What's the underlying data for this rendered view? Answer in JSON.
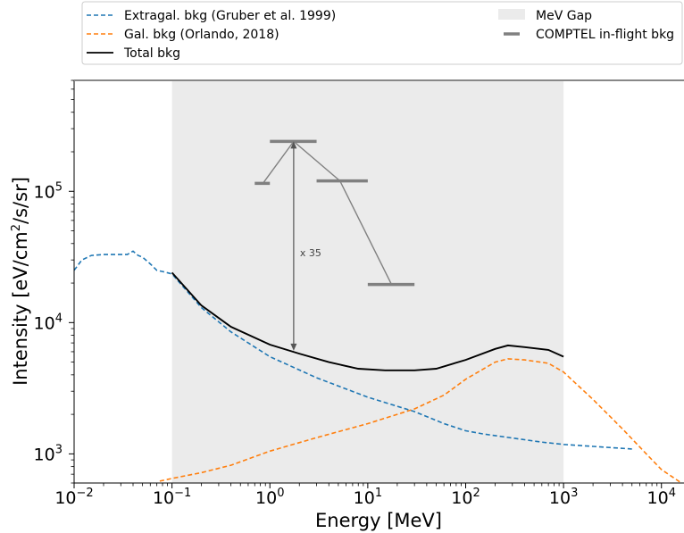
{
  "chart_data": {
    "type": "line",
    "xlabel": "Energy [MeV]",
    "ylabel_prefix": "Intensity [eV/cm",
    "ylabel_sup": "2",
    "ylabel_suffix": "/s/sr]",
    "xscale": "log",
    "yscale": "log",
    "xlim": [
      0.01,
      17000
    ],
    "ylim": [
      600,
      700000
    ],
    "x_ticks": [
      {
        "value": 0.01,
        "base": "10",
        "exp": "−2"
      },
      {
        "value": 0.1,
        "base": "10",
        "exp": "−1"
      },
      {
        "value": 1,
        "base": "10",
        "exp": "0"
      },
      {
        "value": 10,
        "base": "10",
        "exp": "1"
      },
      {
        "value": 100,
        "base": "10",
        "exp": "2"
      },
      {
        "value": 1000,
        "base": "10",
        "exp": "3"
      },
      {
        "value": 10000,
        "base": "10",
        "exp": "4"
      }
    ],
    "y_ticks": [
      {
        "value": 1000,
        "base": "10",
        "exp": "3"
      },
      {
        "value": 10000,
        "base": "10",
        "exp": "4"
      },
      {
        "value": 100000,
        "base": "10",
        "exp": "5"
      }
    ],
    "legend": {
      "placement": "top (above plot)",
      "entries": [
        {
          "label": "Extragal. bkg (Gruber et al. 1999)",
          "style": "dashed",
          "color": "#1f77b4"
        },
        {
          "label": "Gal. bkg (Orlando, 2018)",
          "style": "dashed",
          "color": "#ff7f0e"
        },
        {
          "label": "Total bkg",
          "style": "solid",
          "color": "#000000"
        },
        {
          "label": "MeV Gap",
          "style": "patch",
          "color": "#ebebeb"
        },
        {
          "label": "COMPTEL in-flight bkg",
          "style": "bar",
          "color": "#808080"
        }
      ]
    },
    "mev_gap": {
      "x_range": [
        0.1,
        1000
      ],
      "color": "#ebebeb"
    },
    "series": [
      {
        "name": "Extragal. bkg (Gruber et al. 1999)",
        "color": "#1f77b4",
        "style": "dashed",
        "x": [
          0.01,
          0.012,
          0.015,
          0.02,
          0.025,
          0.03,
          0.035,
          0.04,
          0.045,
          0.05,
          0.06,
          0.07,
          0.08,
          0.1,
          0.2,
          0.4,
          1,
          3,
          10,
          30,
          60,
          100,
          150,
          300,
          600,
          1000,
          2000,
          5000
        ],
        "y": [
          25000,
          30000,
          32500,
          33000,
          33000,
          33000,
          33000,
          35000,
          32500,
          31500,
          28000,
          25000,
          24500,
          23500,
          13000,
          8500,
          5500,
          3800,
          2700,
          2100,
          1700,
          1500,
          1420,
          1320,
          1230,
          1180,
          1140,
          1090
        ]
      },
      {
        "name": "Gal. bkg (Orlando, 2018)",
        "color": "#ff7f0e",
        "style": "dashed",
        "x": [
          0.075,
          0.1,
          0.2,
          0.4,
          1,
          3,
          10,
          30,
          60,
          100,
          200,
          270,
          400,
          700,
          1000,
          2000,
          4000,
          7000,
          10000,
          16000
        ],
        "y": [
          620,
          650,
          720,
          820,
          1050,
          1330,
          1700,
          2200,
          2800,
          3700,
          5000,
          5300,
          5200,
          4900,
          4200,
          2600,
          1550,
          1000,
          760,
          600
        ]
      },
      {
        "name": "Total bkg",
        "color": "#000000",
        "style": "solid",
        "x": [
          0.1,
          0.2,
          0.4,
          1,
          2,
          4,
          8,
          15,
          30,
          50,
          100,
          200,
          270,
          400,
          700,
          1000
        ],
        "y": [
          24000,
          13500,
          9300,
          6800,
          5800,
          5000,
          4450,
          4330,
          4330,
          4450,
          5200,
          6300,
          6700,
          6500,
          6200,
          5500
        ]
      }
    ],
    "comptel_bars": {
      "name": "COMPTEL in-flight bkg",
      "color": "#808080",
      "bars": [
        {
          "x_range": [
            0.7,
            1.0
          ],
          "y": 115000
        },
        {
          "x_range": [
            1.0,
            3.0
          ],
          "y": 240000
        },
        {
          "x_range": [
            3.0,
            10.0
          ],
          "y": 120000
        },
        {
          "x_range": [
            10.0,
            30.0
          ],
          "y": 19500
        }
      ],
      "connectors": [
        {
          "from": [
            1.75,
            240000
          ],
          "to": [
            0.85,
            115000
          ]
        },
        {
          "from": [
            1.75,
            240000
          ],
          "to": [
            5.2,
            120000
          ]
        },
        {
          "from": [
            5.2,
            120000
          ],
          "to": [
            17.5,
            19500
          ]
        }
      ]
    },
    "annotation": {
      "text": "x 35",
      "arrow_x": 1.75,
      "y_from": 6100,
      "y_to": 240000
    }
  }
}
